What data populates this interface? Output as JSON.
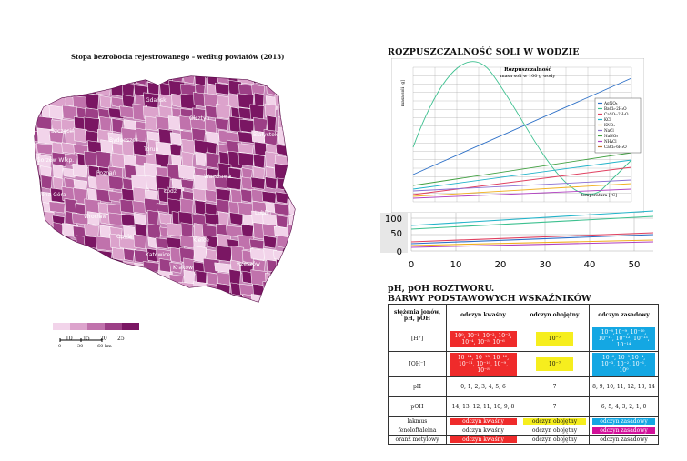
{
  "map": {
    "title": "Stopa bezrobocia rejestrowanego – według powiatów (2013)",
    "cities": [
      "Gdańsk",
      "Olsztyn",
      "Szczecin",
      "Białystok",
      "Bydgoszcz",
      "Toruń",
      "Gorzów Wlkp.",
      "Poznań",
      "Warszawa",
      "Zielona Góra",
      "Łódź",
      "Lublin",
      "Wrocław",
      "Opole",
      "Kielce",
      "Katowice",
      "Rzeszów",
      "Kraków"
    ],
    "legend_ticks": [
      "10",
      "15",
      "20",
      "25"
    ],
    "legend_colors": [
      "#f2d4ea",
      "#dca3cc",
      "#c072ac",
      "#9c3f86",
      "#7a1663"
    ],
    "scale_ticks": [
      "0",
      "30",
      "60 km"
    ]
  },
  "solubility": {
    "title": "ROZPUSZCZALNOŚĆ SOLI W WODZIE",
    "inset_title_line1": "Rozpuszczalność",
    "inset_title_line2": "masa soli w 100 g wody",
    "ylabel": "masa soli [g]",
    "xlabel": "temperatura [°C]",
    "legend": [
      "AgNO₃",
      "BaCl₂·2H₂O",
      "CaSO₄·2H₂O",
      "KCl",
      "KNO₃",
      "NaCl",
      "NaNO₃",
      "NH₄Cl",
      "CaCl₂·6H₂O"
    ]
  },
  "zoom": {
    "y_ticks": [
      "100",
      "50",
      "0"
    ],
    "x_ticks": [
      "0",
      "10",
      "20",
      "30",
      "40",
      "50"
    ]
  },
  "ph": {
    "title_line1": "pH, pOH ROZTWORU.",
    "title_line2": "BARWY PODSTAWOWYCH WSKAŹNIKÓW",
    "headers": [
      "stężenia jonów, pH, pOH",
      "odczyn kwaśny",
      "odczyn obojętny",
      "odczyn zasadowy"
    ],
    "rows": [
      {
        "label": "[H⁺]",
        "acid": "10⁰, 10⁻¹, 10⁻², 10⁻³, 10⁻⁴, 10⁻⁵, 10⁻⁶",
        "neutral": "10⁻⁷",
        "base": "10⁻⁸,10⁻⁹, 10⁻¹⁰, 10⁻¹¹, 10⁻¹², 10⁻¹³, 10⁻¹⁴"
      },
      {
        "label": "[OH⁻]",
        "acid": "10⁻¹⁴, 10⁻¹³, 10⁻¹², 10⁻¹¹, 10⁻¹⁰, 10⁻⁹, 10⁻⁸",
        "neutral": "10⁻⁷",
        "base": "10⁻⁶, 10⁻⁵,10⁻⁴, 10⁻³, 10⁻², 10⁻¹, 10⁰"
      },
      {
        "label": "pH",
        "acid": "0, 1, 2, 3, 4, 5, 6",
        "neutral": "7",
        "base": "8, 9, 10, 11, 12, 13, 14"
      },
      {
        "label": "pOH",
        "acid": "14, 13, 12, 11, 10, 9, 8",
        "neutral": "7",
        "base": "6, 5, 4, 3, 2, 1, 0"
      },
      {
        "label": "lakmus",
        "acid": "odczyn kwaśny",
        "neutral": "odczyn obojętny",
        "base": "odczyn zasadowy"
      },
      {
        "label": "fenoloftaleina",
        "acid": "odczyn kwaśny",
        "neutral": "odczyn obojętny",
        "base": "odczyn zasadowy"
      },
      {
        "label": "oranż metylowy",
        "acid": "odczyn kwaśny",
        "neutral": "odczyn obojętny",
        "base": "odczyn zasadowy"
      }
    ]
  }
}
